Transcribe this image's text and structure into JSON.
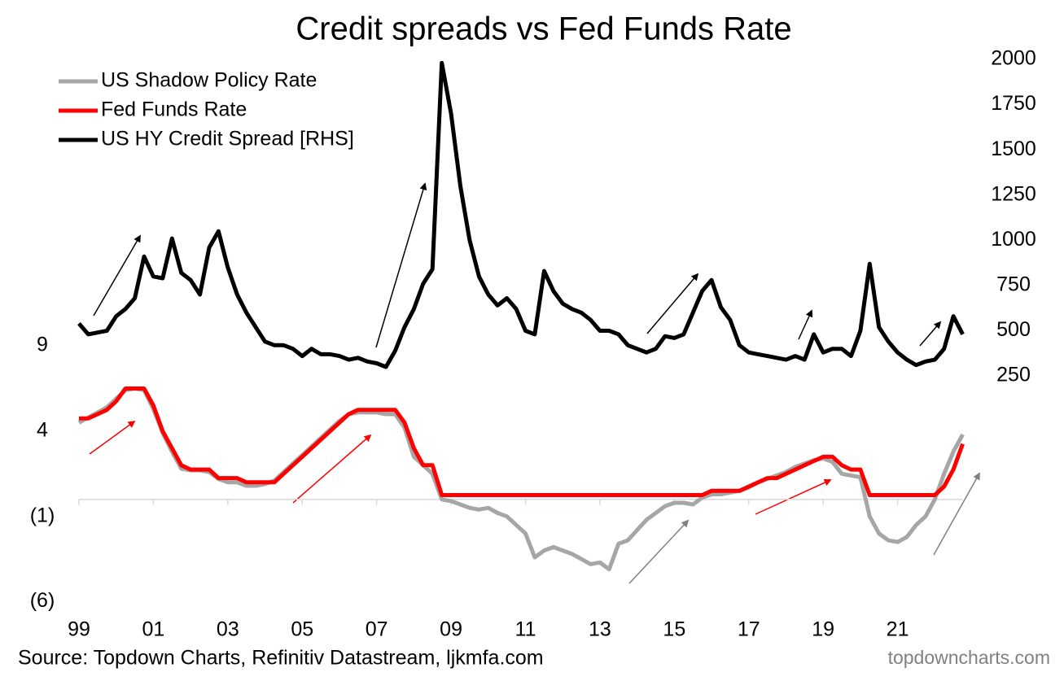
{
  "chart_data": {
    "type": "line",
    "title": "Credit spreads vs Fed Funds Rate",
    "source": "Source: Topdown Charts, Refinitiv Datastream, ljkmfa.com",
    "watermark": "topdowncharts.com",
    "x": [
      1999,
      1999.25,
      1999.5,
      1999.75,
      2000,
      2000.25,
      2000.5,
      2000.75,
      2001,
      2001.25,
      2001.5,
      2001.75,
      2002,
      2002.25,
      2002.5,
      2002.75,
      2003,
      2003.25,
      2003.5,
      2003.75,
      2004,
      2004.25,
      2004.5,
      2004.75,
      2005,
      2005.25,
      2005.5,
      2005.75,
      2006,
      2006.25,
      2006.5,
      2006.75,
      2007,
      2007.25,
      2007.5,
      2007.75,
      2008,
      2008.25,
      2008.5,
      2008.75,
      2009,
      2009.25,
      2009.5,
      2009.75,
      2010,
      2010.25,
      2010.5,
      2010.75,
      2011,
      2011.25,
      2011.5,
      2011.75,
      2012,
      2012.25,
      2012.5,
      2012.75,
      2013,
      2013.25,
      2013.5,
      2013.75,
      2014,
      2014.25,
      2014.5,
      2014.75,
      2015,
      2015.25,
      2015.5,
      2015.75,
      2016,
      2016.25,
      2016.5,
      2016.75,
      2017,
      2017.25,
      2017.5,
      2017.75,
      2018,
      2018.25,
      2018.5,
      2018.75,
      2019,
      2019.25,
      2019.5,
      2019.75,
      2020,
      2020.25,
      2020.5,
      2020.75,
      2021,
      2021.25,
      2021.5,
      2021.75,
      2022,
      2022.25,
      2022.5,
      2022.75
    ],
    "series": [
      {
        "name": "US Shadow Policy Rate",
        "color": "#a6a6a6",
        "values": [
          4.5,
          4.8,
          5.1,
          5.4,
          5.9,
          6.4,
          6.5,
          6.4,
          5.3,
          3.9,
          2.8,
          1.8,
          1.7,
          1.7,
          1.6,
          1.2,
          1.0,
          1.0,
          0.8,
          0.8,
          0.9,
          1.1,
          1.6,
          2.1,
          2.6,
          3.1,
          3.6,
          4.1,
          4.6,
          5.0,
          5.1,
          5.1,
          5.1,
          5.0,
          5.0,
          4.2,
          2.5,
          2.0,
          1.5,
          0.0,
          -0.1,
          -0.3,
          -0.5,
          -0.6,
          -0.5,
          -0.8,
          -1.0,
          -1.5,
          -2.0,
          -3.4,
          -3.0,
          -2.8,
          -3.0,
          -3.2,
          -3.5,
          -3.8,
          -3.7,
          -4.1,
          -2.6,
          -2.4,
          -1.8,
          -1.2,
          -0.8,
          -0.4,
          -0.2,
          -0.2,
          -0.3,
          0.1,
          0.3,
          0.3,
          0.4,
          0.5,
          0.7,
          1.0,
          1.2,
          1.4,
          1.6,
          1.9,
          2.1,
          2.3,
          2.4,
          2.2,
          1.5,
          1.4,
          1.3,
          -1.0,
          -2.0,
          -2.4,
          -2.5,
          -2.2,
          -1.5,
          -1.0,
          0.0,
          1.5,
          2.8,
          3.8
        ]
      },
      {
        "name": "Fed Funds Rate",
        "color": "#ff0000",
        "values": [
          4.75,
          4.75,
          5.0,
          5.25,
          5.75,
          6.5,
          6.5,
          6.5,
          5.5,
          4.0,
          3.0,
          2.0,
          1.75,
          1.75,
          1.75,
          1.25,
          1.25,
          1.25,
          1.0,
          1.0,
          1.0,
          1.0,
          1.5,
          2.0,
          2.5,
          3.0,
          3.5,
          4.0,
          4.5,
          5.0,
          5.25,
          5.25,
          5.25,
          5.25,
          5.25,
          4.5,
          3.0,
          2.0,
          2.0,
          0.25,
          0.25,
          0.25,
          0.25,
          0.25,
          0.25,
          0.25,
          0.25,
          0.25,
          0.25,
          0.25,
          0.25,
          0.25,
          0.25,
          0.25,
          0.25,
          0.25,
          0.25,
          0.25,
          0.25,
          0.25,
          0.25,
          0.25,
          0.25,
          0.25,
          0.25,
          0.25,
          0.25,
          0.25,
          0.5,
          0.5,
          0.5,
          0.5,
          0.75,
          1.0,
          1.25,
          1.25,
          1.5,
          1.75,
          2.0,
          2.25,
          2.5,
          2.5,
          2.0,
          1.75,
          1.75,
          0.25,
          0.25,
          0.25,
          0.25,
          0.25,
          0.25,
          0.25,
          0.25,
          0.75,
          1.75,
          3.25
        ]
      },
      {
        "name": "US HY Credit Spread [RHS]",
        "color": "#000000",
        "axis": "y2",
        "values": [
          540,
          480,
          490,
          500,
          580,
          620,
          680,
          910,
          800,
          790,
          1010,
          820,
          780,
          700,
          960,
          1050,
          850,
          700,
          600,
          520,
          440,
          420,
          420,
          400,
          360,
          400,
          370,
          370,
          360,
          340,
          350,
          330,
          320,
          300,
          390,
          520,
          620,
          760,
          840,
          1980,
          1700,
          1300,
          1000,
          800,
          700,
          640,
          680,
          620,
          500,
          480,
          830,
          720,
          650,
          620,
          600,
          560,
          500,
          500,
          480,
          420,
          400,
          380,
          400,
          470,
          460,
          480,
          600,
          720,
          780,
          630,
          560,
          420,
          380,
          370,
          360,
          350,
          340,
          360,
          340,
          480,
          380,
          400,
          400,
          360,
          500,
          870,
          520,
          440,
          380,
          340,
          310,
          330,
          340,
          400,
          580,
          480
        ]
      }
    ],
    "xlim": [
      1999,
      2023
    ],
    "xticks": [
      {
        "value": 1999,
        "label": "99"
      },
      {
        "value": 2001,
        "label": "01"
      },
      {
        "value": 2003,
        "label": "03"
      },
      {
        "value": 2005,
        "label": "05"
      },
      {
        "value": 2007,
        "label": "07"
      },
      {
        "value": 2009,
        "label": "09"
      },
      {
        "value": 2011,
        "label": "11"
      },
      {
        "value": 2013,
        "label": "13"
      },
      {
        "value": 2015,
        "label": "15"
      },
      {
        "value": 2017,
        "label": "17"
      },
      {
        "value": 2019,
        "label": "19"
      },
      {
        "value": 2021,
        "label": "21"
      }
    ],
    "ylim": [
      -6.5,
      25.8
    ],
    "yticks": [
      9,
      4,
      {
        "value": -1,
        "label": "(1)"
      },
      {
        "value": -6,
        "label": "(6)"
      }
    ],
    "y2lim": [
      -1045,
      2000
    ],
    "y2ticks": [
      250,
      500,
      750,
      1000,
      1250,
      1500,
      1750,
      2000
    ],
    "legend": "top-left"
  }
}
